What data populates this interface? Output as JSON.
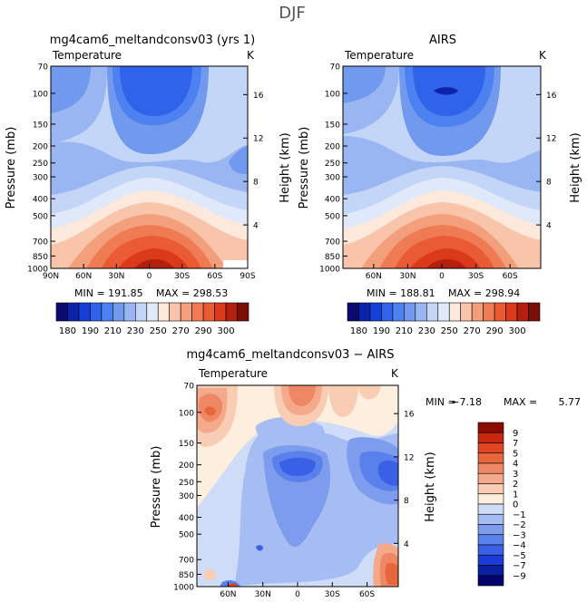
{
  "figure": {
    "title": "DJF"
  },
  "colors": {
    "abs_scale": [
      "#0a0a6e",
      "#0c22a8",
      "#1540d8",
      "#2f63ea",
      "#4d80f0",
      "#7199ee",
      "#9ab6f2",
      "#c4d6f7",
      "#e0e9f9",
      "#fde8dc",
      "#f8c4aa",
      "#f39f7c",
      "#ef7b55",
      "#ea5a33",
      "#db3a1a",
      "#b3200d",
      "#7a0d05"
    ],
    "diff_scale": [
      "#04046e",
      "#0a1ea0",
      "#1c3cd8",
      "#3a60e8",
      "#5a80ec",
      "#7d9ced",
      "#a6bdf3",
      "#cfdcf8",
      "#fdeede",
      "#f8cdb4",
      "#f3a98a",
      "#ee8864",
      "#e8663c",
      "#e04421",
      "#c8260f",
      "#8b0b03"
    ]
  },
  "chart_data": [
    {
      "type": "heatmap",
      "title": "mg4cam6_meltandconsv03 (yrs 1)",
      "left_label": "Temperature",
      "right_label": "K",
      "xlabel": "",
      "ylabel": "Pressure (mb)",
      "y2label": "Height (km)",
      "x_ticks": [
        "90N",
        "60N",
        "30N",
        "0",
        "30S",
        "60S",
        "90S"
      ],
      "y_ticks": [
        "70",
        "100",
        "150",
        "200",
        "250",
        "300",
        "400",
        "500",
        "700",
        "850",
        "1000"
      ],
      "y2_ticks": [
        "16",
        "12",
        "8",
        "4"
      ],
      "min_label": "MIN = 191.85",
      "max_label": "MAX = 298.53",
      "min": 191.85,
      "max": 298.53,
      "colorbar_labels": [
        "180",
        "190",
        "210",
        "230",
        "250",
        "270",
        "290",
        "300"
      ]
    },
    {
      "type": "heatmap",
      "title": "AIRS",
      "left_label": "Temperature",
      "right_label": "K",
      "xlabel": "",
      "ylabel": "Pressure (mb)",
      "y2label": "Height (km)",
      "x_ticks": [
        "60N",
        "30N",
        "0",
        "30S",
        "60S"
      ],
      "y_ticks": [
        "70",
        "100",
        "150",
        "200",
        "250",
        "300",
        "400",
        "500",
        "700",
        "850",
        "1000"
      ],
      "y2_ticks": [
        "16",
        "12",
        "8",
        "4"
      ],
      "min_label": "MIN = 188.81",
      "max_label": "MAX = 298.94",
      "min": 188.81,
      "max": 298.94,
      "colorbar_labels": [
        "180",
        "190",
        "210",
        "230",
        "250",
        "270",
        "290",
        "300"
      ]
    },
    {
      "type": "heatmap",
      "title": "mg4cam6_meltandconsv03 − AIRS",
      "left_label": "Temperature",
      "right_label": "K",
      "xlabel": "",
      "ylabel": "Pressure (mb)",
      "y2label": "Height (km)",
      "x_ticks": [
        "60N",
        "30N",
        "0",
        "30S",
        "60S"
      ],
      "y_ticks": [
        "70",
        "100",
        "150",
        "200",
        "250",
        "300",
        "400",
        "500",
        "700",
        "850",
        "1000"
      ],
      "y2_ticks": [
        "16",
        "12",
        "8",
        "4"
      ],
      "min_text": "MIN =",
      "min_value": "−7.18",
      "max_text": "MAX =",
      "max_value": "5.77",
      "min": -7.18,
      "max": 5.77,
      "colorbar_labels": [
        "9",
        "7",
        "5",
        "4",
        "3",
        "2",
        "1",
        "0",
        "−1",
        "−2",
        "−3",
        "−4",
        "−5",
        "−7",
        "−9"
      ]
    }
  ]
}
